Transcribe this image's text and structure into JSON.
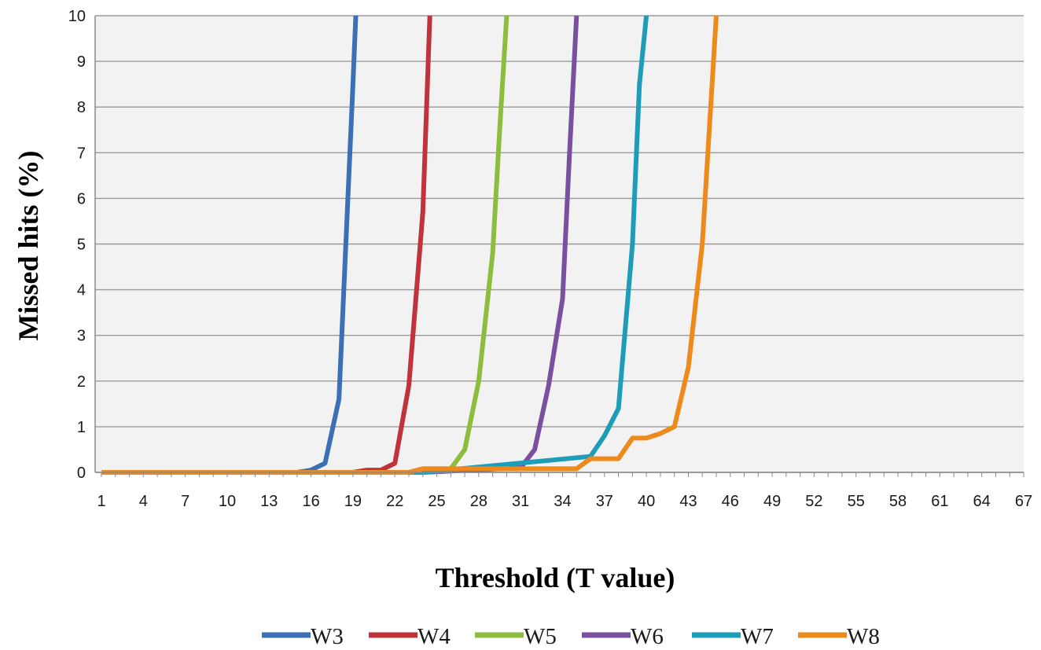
{
  "chart_data": {
    "type": "line",
    "title": "",
    "xlabel": "Threshold (T value)",
    "ylabel": "Missed hits (%)",
    "xlim": [
      1,
      67
    ],
    "ylim": [
      0,
      10
    ],
    "y_ticks": [
      0,
      1,
      2,
      3,
      4,
      5,
      6,
      7,
      8,
      9,
      10
    ],
    "x_ticks": [
      1,
      4,
      7,
      10,
      13,
      16,
      19,
      22,
      25,
      28,
      31,
      34,
      37,
      40,
      43,
      46,
      49,
      52,
      55,
      58,
      61,
      64,
      67
    ],
    "grid": "horizontal",
    "legend_position": "bottom",
    "plot_background": "#f2f2f2",
    "series": [
      {
        "name": "W3",
        "color": "#3b6fb6",
        "x": [
          1,
          15,
          16,
          17,
          18,
          19,
          19.2
        ],
        "y": [
          0,
          0,
          0.05,
          0.2,
          1.6,
          8.5,
          10
        ]
      },
      {
        "name": "W4",
        "color": "#c0333b",
        "x": [
          1,
          19,
          20,
          21,
          22,
          23,
          24,
          24.5
        ],
        "y": [
          0,
          0,
          0.05,
          0.05,
          0.2,
          1.9,
          5.7,
          10
        ]
      },
      {
        "name": "W5",
        "color": "#8cbd3c",
        "x": [
          1,
          23,
          24,
          26,
          27,
          28,
          29,
          29.5,
          30
        ],
        "y": [
          0,
          0,
          0.08,
          0.08,
          0.5,
          2.0,
          4.8,
          7.5,
          10
        ]
      },
      {
        "name": "W6",
        "color": "#7a4fa0",
        "x": [
          1,
          24,
          31,
          32,
          33,
          34,
          34.5,
          35
        ],
        "y": [
          0,
          0,
          0.1,
          0.5,
          1.9,
          3.8,
          7.0,
          10
        ]
      },
      {
        "name": "W7",
        "color": "#1e9db9",
        "x": [
          1,
          24,
          36,
          37,
          38,
          39,
          39.5,
          40
        ],
        "y": [
          0,
          0,
          0.35,
          0.8,
          1.4,
          5.0,
          8.5,
          10
        ]
      },
      {
        "name": "W8",
        "color": "#ee8a1c",
        "x": [
          1,
          23,
          24,
          35,
          36,
          37,
          38,
          39,
          40,
          41,
          42,
          43,
          44,
          45
        ],
        "y": [
          0,
          0,
          0.08,
          0.08,
          0.3,
          0.3,
          0.3,
          0.75,
          0.75,
          0.85,
          1.0,
          2.3,
          5.0,
          10
        ]
      }
    ]
  }
}
